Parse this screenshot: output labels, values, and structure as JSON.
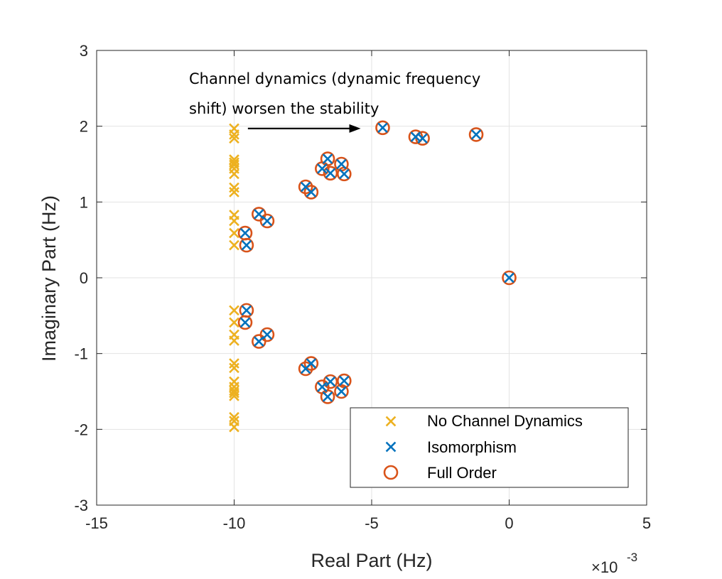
{
  "chart_data": {
    "type": "scatter",
    "title": "",
    "xlabel": "Real Part (Hz)",
    "ylabel": "Imaginary Part (Hz)",
    "x_multiplier_label": "×10",
    "x_multiplier_exponent": "-3",
    "xlim": [
      -15,
      5
    ],
    "ylim": [
      -3,
      3
    ],
    "x_unit_scale": 0.001,
    "x_ticks": [
      -15,
      -10,
      -5,
      0,
      5
    ],
    "x_tick_labels": [
      "-15",
      "-10",
      "-5",
      "0",
      "5"
    ],
    "y_ticks": [
      -3,
      -2,
      -1,
      0,
      1,
      2,
      3
    ],
    "y_tick_labels": [
      "-3",
      "-2",
      "-1",
      "0",
      "1",
      "2",
      "3"
    ],
    "grid": true,
    "legend_position": "bottom-right",
    "annotation": {
      "lines": [
        "Channel dynamics (dynamic frequency",
        "shift) worsen the stability"
      ],
      "arrow_from": [
        -9.5,
        1.97
      ],
      "arrow_to": [
        -5.4,
        1.97
      ]
    },
    "series": [
      {
        "name": "No Channel Dynamics",
        "marker": "x",
        "color": "#EDB120",
        "x": [
          -10,
          -10,
          -10,
          -10,
          -10,
          -10,
          -10,
          -10,
          -10,
          -10,
          -10,
          -10,
          -10,
          -10,
          -10,
          -10,
          -10,
          -10,
          -10,
          -10,
          -10,
          -10,
          -10,
          -10,
          -10,
          -10,
          -10,
          -10
        ],
        "y": [
          1.97,
          1.89,
          1.84,
          1.56,
          1.49,
          1.44,
          1.37,
          1.19,
          1.13,
          0.83,
          0.75,
          0.59,
          0.43,
          -0.43,
          -0.59,
          -0.75,
          -0.83,
          -1.13,
          -1.19,
          -1.37,
          -1.44,
          -1.49,
          -1.56,
          -1.84,
          -1.89,
          -1.97,
          1.52,
          -1.52
        ]
      },
      {
        "name": "Isomorphism",
        "marker": "x",
        "color": "#0072BD",
        "x": [
          -4.6,
          -3.4,
          -3.15,
          -1.2,
          -6.6,
          -6.1,
          -6.8,
          -6.5,
          -6.0,
          -7.4,
          -7.2,
          -9.1,
          -8.8,
          -9.6,
          -9.55,
          0.0,
          -9.55,
          -9.6,
          -8.8,
          -9.1,
          -7.2,
          -7.4,
          -6.0,
          -6.5,
          -6.8,
          -6.1,
          -6.6
        ],
        "y": [
          1.98,
          1.86,
          1.84,
          1.89,
          1.57,
          1.5,
          1.44,
          1.38,
          1.37,
          1.2,
          1.13,
          0.84,
          0.75,
          0.59,
          0.43,
          0.0,
          -0.43,
          -0.59,
          -0.75,
          -0.84,
          -1.13,
          -1.2,
          -1.36,
          -1.37,
          -1.44,
          -1.5,
          -1.57
        ]
      },
      {
        "name": "Full Order",
        "marker": "o",
        "color": "#D95319",
        "x": [
          -4.6,
          -3.4,
          -3.15,
          -1.2,
          -6.6,
          -6.1,
          -6.8,
          -6.5,
          -6.0,
          -7.4,
          -7.2,
          -9.1,
          -8.8,
          -9.6,
          -9.55,
          0.0,
          -9.55,
          -9.6,
          -8.8,
          -9.1,
          -7.2,
          -7.4,
          -6.0,
          -6.5,
          -6.8,
          -6.1,
          -6.6
        ],
        "y": [
          1.98,
          1.86,
          1.84,
          1.89,
          1.57,
          1.5,
          1.44,
          1.38,
          1.37,
          1.2,
          1.13,
          0.84,
          0.75,
          0.59,
          0.43,
          0.0,
          -0.43,
          -0.59,
          -0.75,
          -0.84,
          -1.13,
          -1.2,
          -1.36,
          -1.37,
          -1.44,
          -1.5,
          -1.57
        ]
      }
    ]
  }
}
